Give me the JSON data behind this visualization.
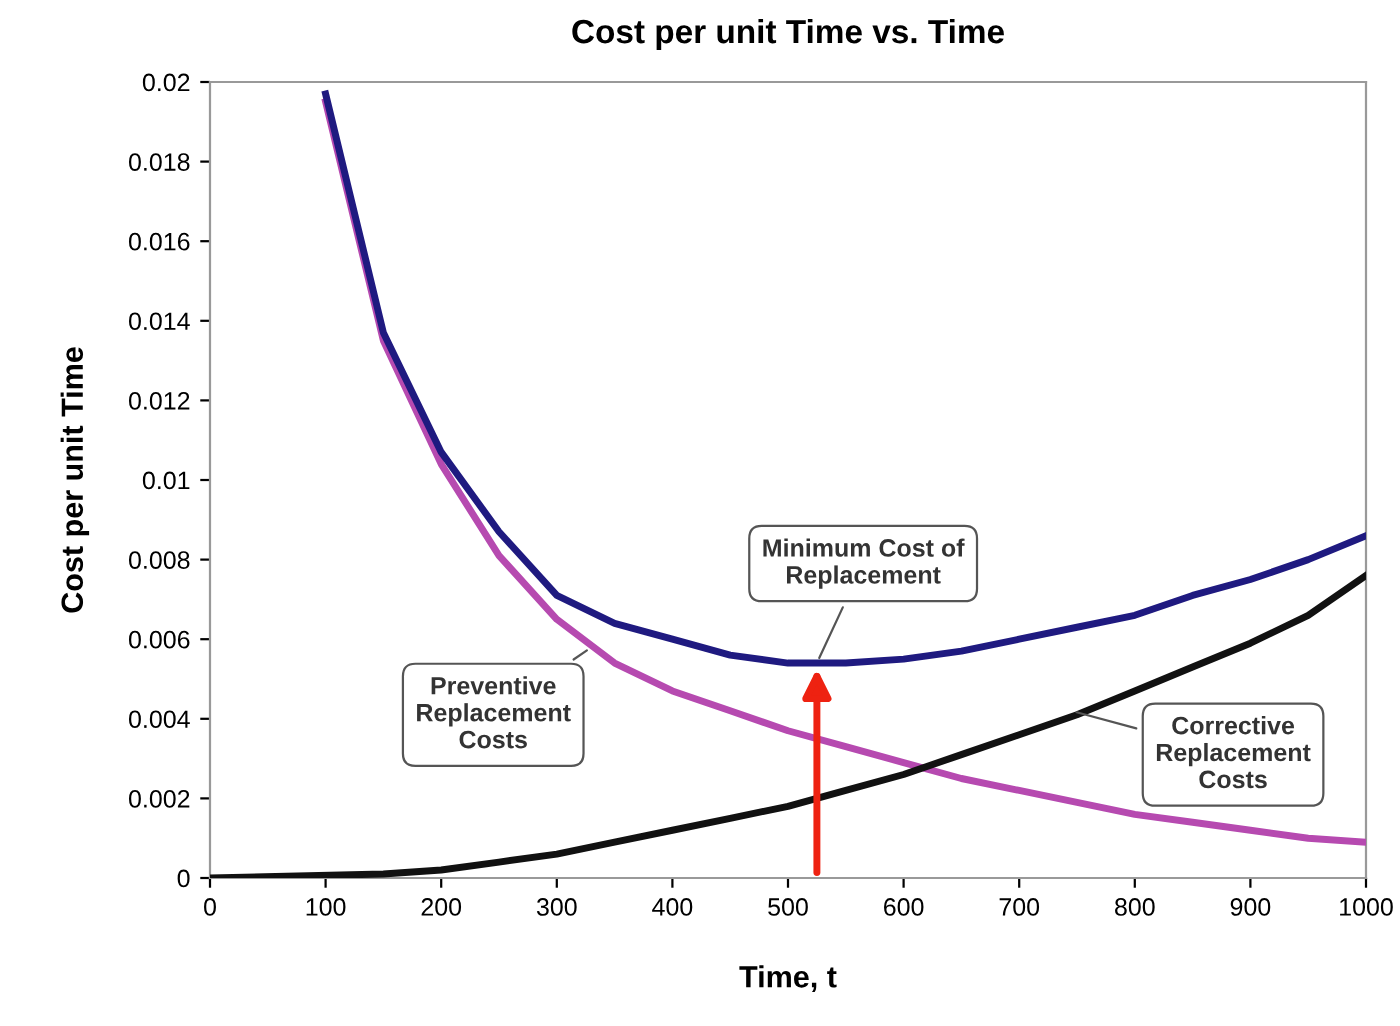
{
  "chart_data": {
    "type": "line",
    "title": "Cost per unit Time vs. Time",
    "xlabel": "Time, t",
    "ylabel": "Cost per unit Time",
    "series": [
      {
        "color": "#b64ab0",
        "x": [
          100,
          150,
          200,
          250,
          300,
          350,
          400,
          450,
          500,
          550,
          600,
          650,
          700,
          750,
          800,
          850,
          900,
          950,
          1000
        ],
        "values": [
          0.0195,
          0.0135,
          0.0104,
          0.0081,
          0.0065,
          0.0054,
          0.0047,
          0.0042,
          0.0037,
          0.0033,
          0.0029,
          0.0025,
          0.0022,
          0.0019,
          0.0016,
          0.0014,
          0.0012,
          0.001,
          0.0009
        ]
      },
      {
        "color": "#1f1a80",
        "x": [
          100,
          150,
          200,
          250,
          300,
          350,
          400,
          450,
          500,
          550,
          600,
          650,
          700,
          750,
          800,
          850,
          900,
          950,
          1000
        ],
        "values": [
          0.0197,
          0.0137,
          0.0107,
          0.0087,
          0.0071,
          0.0064,
          0.006,
          0.0056,
          0.0054,
          0.0054,
          0.0055,
          0.0057,
          0.006,
          0.0063,
          0.0066,
          0.0071,
          0.0075,
          0.008,
          0.0086
        ]
      },
      {
        "color": "#111111",
        "x": [
          0,
          150,
          200,
          250,
          300,
          350,
          400,
          450,
          500,
          550,
          600,
          650,
          700,
          750,
          800,
          850,
          900,
          950,
          1000
        ],
        "values": [
          0,
          0.0001,
          0.0002,
          0.0004,
          0.0006,
          0.0009,
          0.0012,
          0.0015,
          0.0018,
          0.0022,
          0.0026,
          0.0031,
          0.0036,
          0.0041,
          0.0047,
          0.0053,
          0.0059,
          0.0066,
          0.0076
        ]
      }
    ],
    "annotations": [
      {
        "text": "Minimum Cost of\nReplacement",
        "x": 525,
        "y": 0.0054
      },
      {
        "text": "Preventive\nReplacement\nCosts",
        "x": 330,
        "y": 0.0058
      },
      {
        "text": "Corrective\nReplacement\nCosts",
        "x": 745,
        "y": 0.0042
      }
    ],
    "xlim": [
      0,
      1000
    ],
    "xticks": [
      0,
      100,
      200,
      300,
      400,
      500,
      600,
      700,
      800,
      900,
      1000
    ],
    "ylim": [
      0,
      0.02
    ],
    "yticks": [
      {
        "value": 0,
        "label": "0"
      },
      {
        "value": 0.002,
        "label": "0.002"
      },
      {
        "value": 0.004,
        "label": "0.004"
      },
      {
        "value": 0.006,
        "label": "0.006"
      },
      {
        "value": 0.008,
        "label": "0.008"
      },
      {
        "value": 0.01,
        "label": "0.01"
      },
      {
        "value": 0.012,
        "label": "0.012"
      },
      {
        "value": 0.014,
        "label": "0.014"
      },
      {
        "value": 0.016,
        "label": "0.016"
      },
      {
        "value": 0.018,
        "label": "0.018"
      },
      {
        "value": 0.02,
        "label": "0.02"
      }
    ],
    "grid": false,
    "line_style": "solid"
  }
}
